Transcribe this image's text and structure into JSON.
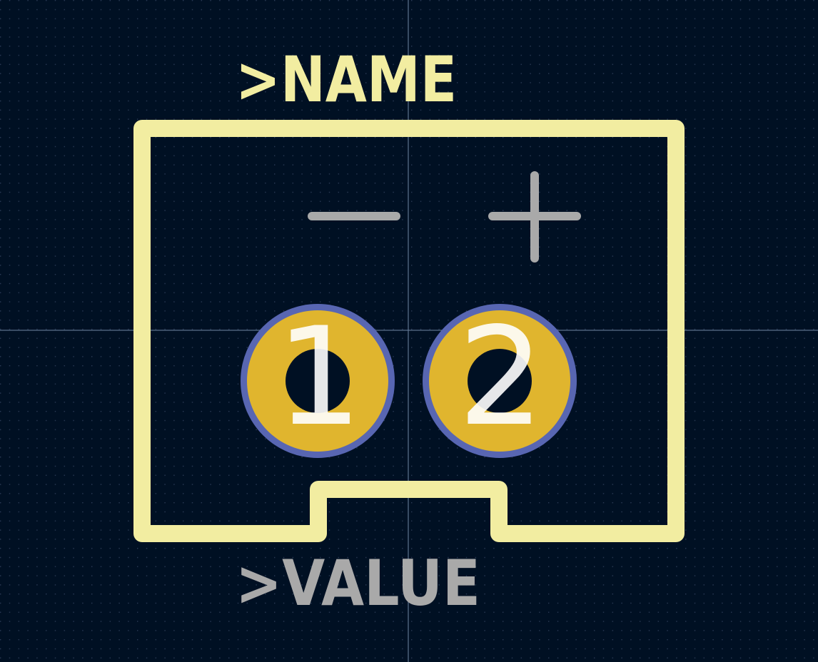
{
  "labels": {
    "name": ">NAME",
    "value": ">VALUE",
    "minus": "−",
    "plus": "+"
  },
  "pads": [
    {
      "number": "1"
    },
    {
      "number": "2"
    }
  ],
  "colors": {
    "background": "#001023",
    "grid_dot": "#2a3a55",
    "crosshair": "#6f86a3",
    "silkscreen": "#f2eda1",
    "fab": "#a9a9a9",
    "pad_copper": "#e0b52e",
    "pad_outline": "#5866b2",
    "drill": "#001023",
    "pad_number": "#ffffff"
  }
}
